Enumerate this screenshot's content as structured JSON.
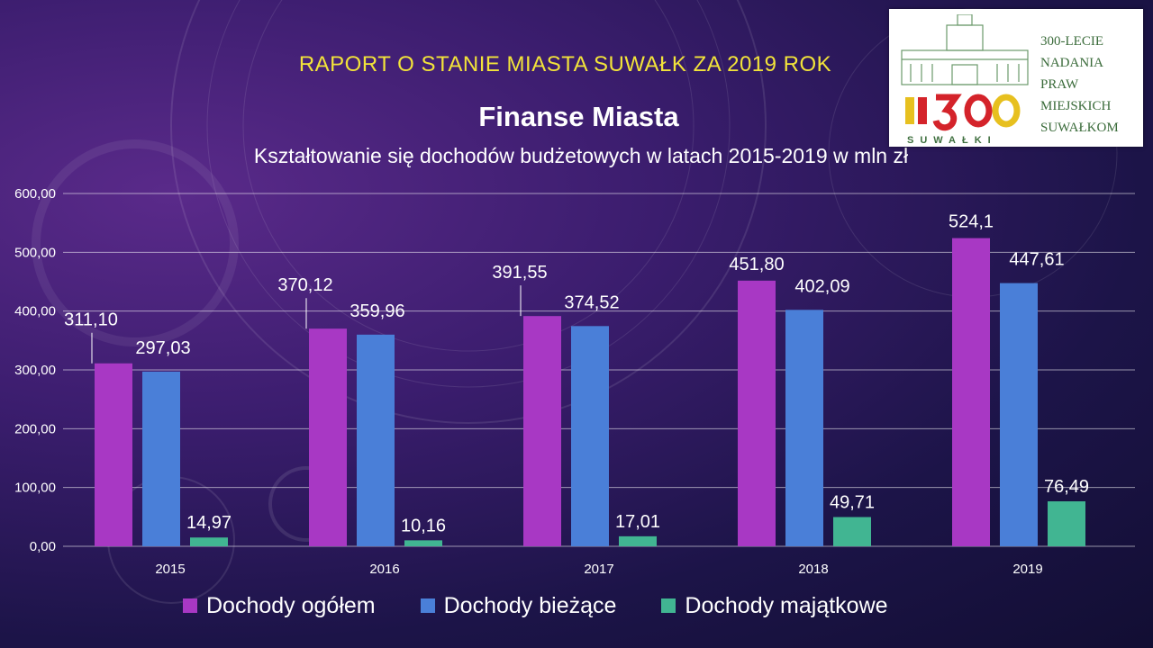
{
  "slide": {
    "report_title": "RAPORT O STANIE MIASTA SUWAŁK ZA 2019 ROK",
    "logo": {
      "text_lines": [
        "300-LECIE",
        "NADANIA",
        "PRAW",
        "MIEJSKICH",
        "SUWAŁKOM"
      ],
      "seal_text": "SUWAŁKI"
    }
  },
  "chart_data": {
    "type": "bar",
    "title": "Finanse Miasta",
    "subtitle": "Kształtowanie się dochodów budżetowych  w latach 2015-2019 w mln zł",
    "categories": [
      "2015",
      "2016",
      "2017",
      "2018",
      "2019"
    ],
    "series": [
      {
        "name": "Dochody ogółem",
        "color": "#a838c4",
        "values": [
          311.1,
          370.12,
          391.55,
          451.8,
          524.1
        ],
        "labels": [
          "311,10",
          "370,12",
          "391,55",
          "451,80",
          "524,1"
        ]
      },
      {
        "name": "Dochody bieżące",
        "color": "#4a7fd8",
        "values": [
          297.03,
          359.96,
          374.52,
          402.09,
          447.61
        ],
        "labels": [
          "297,03",
          "359,96",
          "374,52",
          "402,09",
          "447,61"
        ]
      },
      {
        "name": "Dochody majątkowe",
        "color": "#41b592",
        "values": [
          14.97,
          10.16,
          17.01,
          49.71,
          76.49
        ],
        "labels": [
          "14,97",
          "10,16",
          "17,01",
          "49,71",
          "76,49"
        ]
      }
    ],
    "ylim": [
      0,
      600
    ],
    "yticks": [
      "0,00",
      "100,00",
      "200,00",
      "300,00",
      "400,00",
      "500,00",
      "600,00"
    ],
    "grid": true,
    "legend": "bottom"
  }
}
